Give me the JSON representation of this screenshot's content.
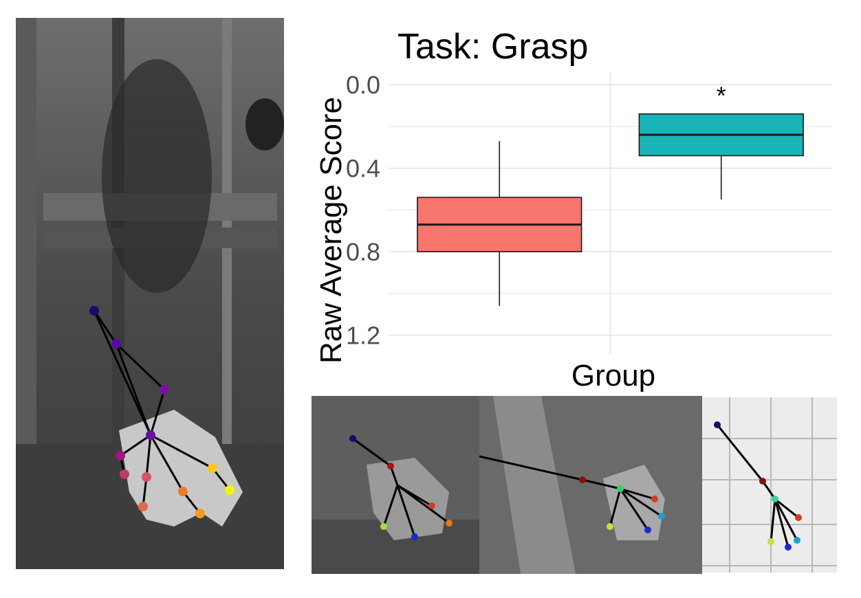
{
  "chart_data": {
    "type": "box",
    "title": "Task: Grasp",
    "xlabel": "Group",
    "ylabel": "Raw Average Score",
    "y_axis_reversed": true,
    "ylim": [
      -0.06,
      1.29
    ],
    "yticks": [
      0.0,
      0.4,
      0.8,
      1.2
    ],
    "ytick_labels": [
      "0.0",
      "0.4",
      "0.8",
      "1.2"
    ],
    "grid": true,
    "legend": "none",
    "series": [
      {
        "color": "#F8766D",
        "whisker_low": 0.27,
        "q1": 0.54,
        "median": 0.67,
        "q3": 0.8,
        "whisker_high": 1.06
      },
      {
        "color": "#19B4B8",
        "whisker_low": 0.14,
        "q1": 0.14,
        "median": 0.24,
        "q3": 0.34,
        "whisker_high": 0.55,
        "annotation": "*"
      }
    ]
  },
  "images": {
    "left_photo": {
      "keypoint_colors": [
        "#1a0a6b",
        "#5b0aa6",
        "#7a0fa8",
        "#6a0fa0",
        "#a0157f",
        "#c23a6c",
        "#d6536a",
        "#e06a4e",
        "#ee7b30",
        "#f69b22",
        "#f7c81e",
        "#eef514"
      ]
    },
    "thumbs": [
      {
        "name": "thumb-1"
      },
      {
        "name": "thumb-2"
      },
      {
        "name": "thumb-3"
      }
    ]
  }
}
